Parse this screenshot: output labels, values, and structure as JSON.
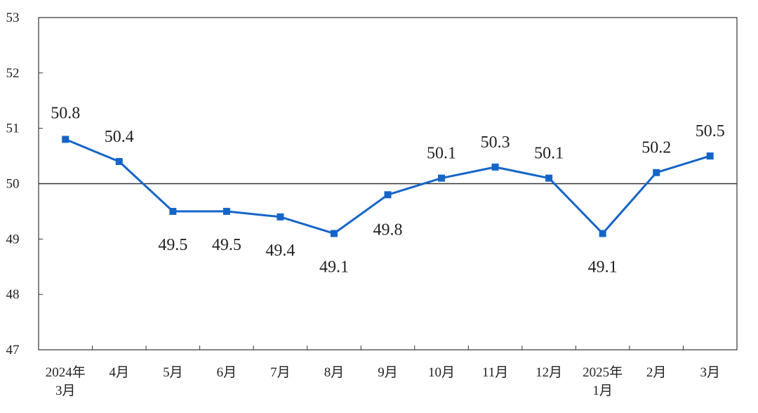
{
  "chart_data": {
    "type": "line",
    "categories": [
      [
        "2024年",
        "3月"
      ],
      [
        "4月"
      ],
      [
        "5月"
      ],
      [
        "6月"
      ],
      [
        "7月"
      ],
      [
        "8月"
      ],
      [
        "9月"
      ],
      [
        "10月"
      ],
      [
        "11月"
      ],
      [
        "12月"
      ],
      [
        "2025年",
        "1月"
      ],
      [
        "2月"
      ],
      [
        "3月"
      ]
    ],
    "series": [
      {
        "values": [
          50.8,
          50.4,
          49.5,
          49.5,
          49.4,
          49.1,
          49.8,
          50.1,
          50.3,
          50.1,
          49.1,
          50.2,
          50.5
        ],
        "data_labels": [
          "50.8",
          "50.4",
          "49.5",
          "49.5",
          "49.4",
          "49.1",
          "49.8",
          "50.1",
          "50.3",
          "50.1",
          "49.1",
          "50.2",
          "50.5"
        ],
        "color": "#1565c8"
      }
    ],
    "ylim": [
      47,
      53
    ],
    "yticks": [
      "47",
      "48",
      "49",
      "50",
      "51",
      "52",
      "53"
    ],
    "reference_line": 50,
    "grid": false,
    "title": "",
    "xlabel": "",
    "ylabel": ""
  }
}
